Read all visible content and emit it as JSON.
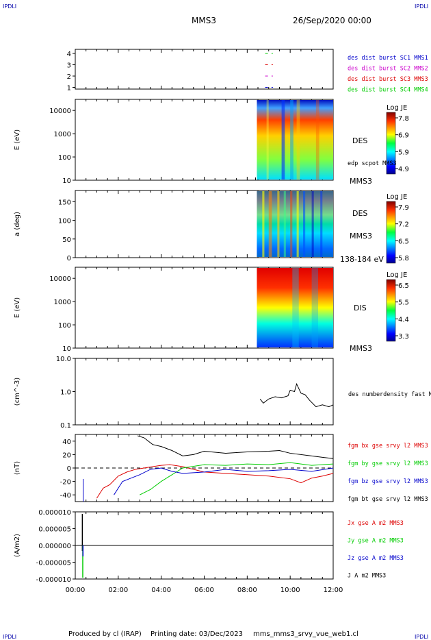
{
  "header": {
    "corner_left": "IPDLI",
    "corner_right": "IPDLI",
    "spacecraft": "MMS3",
    "date": "26/Sep/2020 00:00"
  },
  "footer": {
    "produced_by": "Produced by cl (IRAP)",
    "printing_date": "Printing date: 03/Dec/2023",
    "file": "mms_mms3_srvy_vue_web1.cl",
    "corner_left": "IPDLI",
    "corner_right": "IPDLI"
  },
  "colors": {
    "blue": "#0000cc",
    "magenta": "#cc00cc",
    "red": "#dd0000",
    "green": "#00cc00",
    "black": "#000000"
  },
  "chart_data": [
    {
      "type": "scatter",
      "panel": "availability",
      "yticks": [
        "4",
        "3",
        "2",
        "1"
      ],
      "legend": [
        {
          "label": "des dist burst SC1 MMS1",
          "color": "#0000cc"
        },
        {
          "label": "des dist burst SC2 MMS2",
          "color": "#cc00cc"
        },
        {
          "label": "des dist burst SC3 MMS3",
          "color": "#dd0000"
        },
        {
          "label": "des dist burst SC4 MMS4",
          "color": "#00cc00"
        }
      ],
      "marks": [
        {
          "y": 4,
          "x_start": 8.9,
          "x_end": 9.1,
          "color": "#00cc00"
        },
        {
          "y": 3,
          "x_start": 8.9,
          "x_end": 9.1,
          "color": "#dd0000"
        },
        {
          "y": 2,
          "x_start": 8.9,
          "x_end": 9.1,
          "color": "#cc00cc"
        },
        {
          "y": 1,
          "x_start": 8.9,
          "x_end": 9.1,
          "color": "#0000cc"
        }
      ]
    },
    {
      "type": "heatmap",
      "panel": "des_energy",
      "ylabel": "E (eV)",
      "yscale": "log",
      "ylim": [
        10,
        30000
      ],
      "yticks": [
        "10000",
        "1000",
        "100",
        "10"
      ],
      "data_start_hour": 8.45,
      "colorbar": {
        "title": "Log JE",
        "ticks": [
          "7.8",
          "6.9",
          "5.9",
          "4.9"
        ]
      },
      "instrument": "DES",
      "overlay": "edp scpot MMS3",
      "spacecraft": "MMS3"
    },
    {
      "type": "heatmap",
      "panel": "des_pitch",
      "ylabel": "a (deg)",
      "ylim": [
        0,
        180
      ],
      "yticks": [
        "150",
        "100",
        "50",
        "0"
      ],
      "data_start_hour": 8.45,
      "colorbar": {
        "title": "Log JE",
        "ticks": [
          "7.9",
          "7.2",
          "6.5",
          "5.8"
        ]
      },
      "instrument": "DES",
      "spacecraft": "MMS3",
      "energy_range": "138-184 eV"
    },
    {
      "type": "heatmap",
      "panel": "dis_energy",
      "ylabel": "E (eV)",
      "yscale": "log",
      "ylim": [
        10,
        30000
      ],
      "yticks": [
        "10000",
        "1000",
        "100",
        "10"
      ],
      "data_start_hour": 8.45,
      "colorbar": {
        "title": "Log JE",
        "ticks": [
          "6.5",
          "5.5",
          "4.4",
          "3.3"
        ]
      },
      "instrument": "DIS",
      "spacecraft": "MMS3"
    },
    {
      "type": "line",
      "panel": "density",
      "ylabel": "(cm^-3)",
      "yscale": "log",
      "ylim": [
        0.1,
        10
      ],
      "yticks": [
        "10.0",
        "1.0",
        "0.1"
      ],
      "series": [
        {
          "name": "des numberdensity fast M",
          "color": "#000000",
          "x": [
            8.6,
            8.75,
            9.0,
            9.3,
            9.6,
            9.9,
            10.0,
            10.2,
            10.3,
            10.5,
            10.7,
            10.9,
            11.2,
            11.5,
            11.8,
            12.0
          ],
          "values": [
            0.6,
            0.45,
            0.6,
            0.7,
            0.65,
            0.75,
            1.1,
            1.0,
            1.7,
            0.9,
            0.8,
            0.55,
            0.35,
            0.4,
            0.35,
            0.4
          ]
        }
      ]
    },
    {
      "type": "line",
      "panel": "magnetic_field",
      "ylabel": "(nT)",
      "ylim": [
        -50,
        50
      ],
      "yticks": [
        "40",
        "20",
        "0",
        "-20",
        "-40"
      ],
      "series": [
        {
          "name": "fgm bx gse srvy l2 MMS3",
          "color": "#dd0000",
          "x": [
            1.0,
            1.3,
            1.6,
            2.0,
            2.4,
            2.8,
            3.2,
            3.6,
            4.0,
            4.4,
            5.0,
            6.0,
            7.0,
            8.0,
            9.0,
            10.0,
            10.5,
            11.0,
            11.5,
            12.0
          ],
          "values": [
            -45,
            -30,
            -25,
            -12,
            -6,
            -2,
            0,
            2,
            4,
            5,
            2,
            -6,
            -8,
            -10,
            -12,
            -16,
            -22,
            -15,
            -12,
            -8
          ]
        },
        {
          "name": "fgm by gse srvy l2 MMS3",
          "color": "#00cc00",
          "x": [
            3.0,
            3.5,
            4.0,
            4.5,
            5.0,
            6.0,
            7.0,
            8.0,
            9.0,
            10.0,
            11.0,
            12.0
          ],
          "values": [
            -40,
            -32,
            -20,
            -10,
            0,
            5,
            4,
            6,
            5,
            8,
            4,
            6
          ]
        },
        {
          "name": "fgm bz gse srvy l2 MMS3",
          "color": "#0000cc",
          "x": [
            1.8,
            2.2,
            2.6,
            3.0,
            3.5,
            4.0,
            4.5,
            5.0,
            6.0,
            7.0,
            8.0,
            9.0,
            10.0,
            11.0,
            12.0
          ],
          "values": [
            -40,
            -20,
            -15,
            -10,
            -2,
            0,
            -5,
            -8,
            -6,
            -2,
            -5,
            -4,
            -2,
            -5,
            0
          ]
        },
        {
          "name": "fgm bt gse srvy l2 MMS3",
          "color": "#000000",
          "x": [
            2.9,
            3.2,
            3.6,
            4.0,
            4.5,
            5.0,
            5.5,
            6.0,
            7.0,
            8.0,
            9.0,
            9.5,
            10.0,
            11.0,
            11.5,
            12.0
          ],
          "values": [
            48,
            45,
            35,
            32,
            26,
            18,
            20,
            25,
            22,
            24,
            25,
            26,
            22,
            18,
            16,
            14
          ]
        }
      ]
    },
    {
      "type": "line",
      "panel": "current_density",
      "ylabel": "(A/m2)",
      "ylim": [
        -1e-05,
        1e-05
      ],
      "yticks": [
        "0.000010",
        "0.000005",
        "0.000000",
        "-0.000005",
        "-0.000010"
      ],
      "series": [
        {
          "name": "Jx gse A m2 MMS3",
          "color": "#dd0000"
        },
        {
          "name": "Jy gse A m2 MMS3",
          "color": "#00cc00"
        },
        {
          "name": "Jz gse A m2 MMS3",
          "color": "#0000cc"
        },
        {
          "name": "J A m2 MMS3",
          "color": "#000000"
        }
      ]
    }
  ],
  "time_axis": {
    "ticks": [
      "00:00",
      "02:00",
      "04:00",
      "06:00",
      "08:00",
      "10:00",
      "12:00"
    ],
    "range_hours": [
      0,
      12
    ]
  }
}
